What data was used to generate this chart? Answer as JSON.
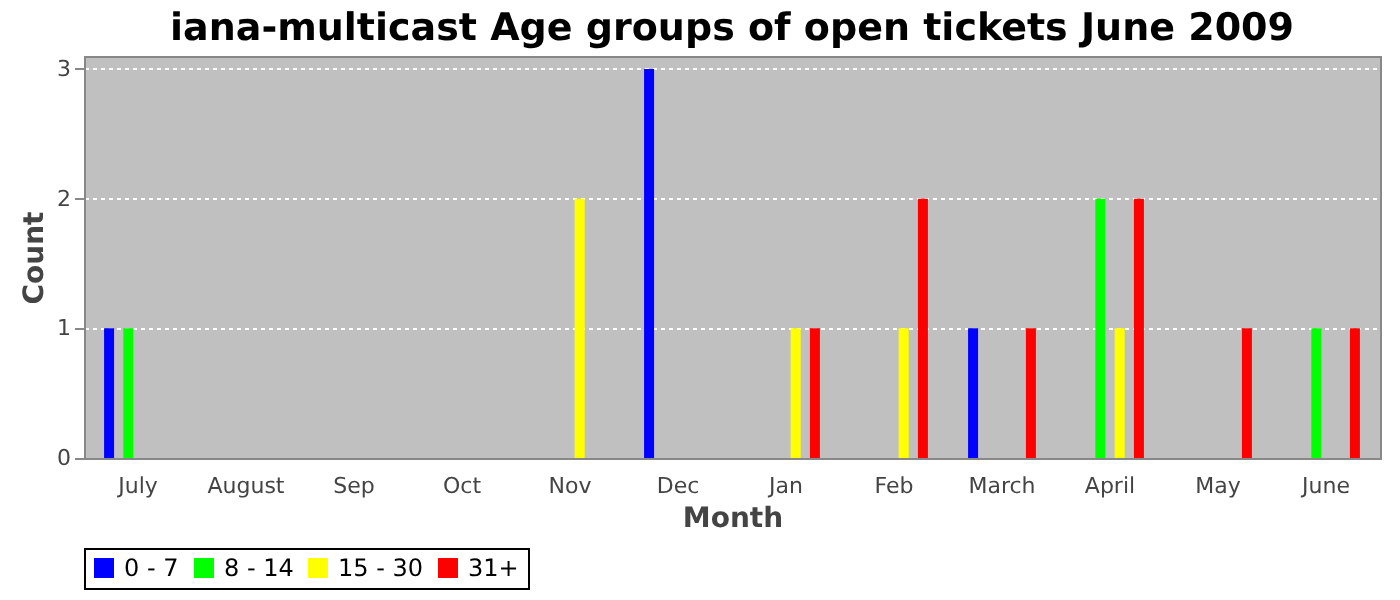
{
  "chart_data": {
    "type": "bar",
    "title": "iana-multicast Age groups of open tickets June 2009",
    "xlabel": "Month",
    "ylabel": "Count",
    "categories": [
      "July",
      "August",
      "Sep",
      "Oct",
      "Nov",
      "Dec",
      "Jan",
      "Feb",
      "March",
      "April",
      "May",
      "June"
    ],
    "series": [
      {
        "name": "0 - 7",
        "color": "#0000ff",
        "values": [
          1,
          0,
          0,
          0,
          0,
          3,
          0,
          0,
          1,
          0,
          0,
          0
        ]
      },
      {
        "name": "8 - 14",
        "color": "#00ff00",
        "values": [
          1,
          0,
          0,
          0,
          0,
          0,
          0,
          0,
          0,
          2,
          0,
          1
        ]
      },
      {
        "name": "15 - 30",
        "color": "#ffff00",
        "values": [
          0,
          0,
          0,
          0,
          2,
          0,
          1,
          1,
          0,
          1,
          0,
          0
        ]
      },
      {
        "name": "31+",
        "color": "#ff0000",
        "values": [
          0,
          0,
          0,
          0,
          0,
          0,
          1,
          2,
          1,
          2,
          1,
          1
        ]
      }
    ],
    "ylim": [
      0,
      3.1
    ],
    "yticks": [
      0,
      1,
      2,
      3
    ],
    "grid": "y",
    "legend": "bottom"
  }
}
